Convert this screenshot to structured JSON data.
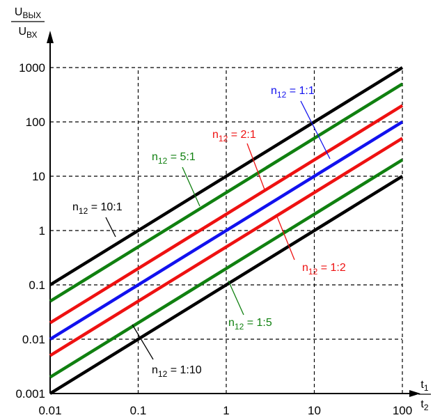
{
  "chart_data": {
    "type": "line",
    "title": "",
    "x_scale": "log",
    "y_scale": "log",
    "xlim": [
      0.01,
      100
    ],
    "ylim": [
      0.001,
      1000
    ],
    "grid": true,
    "x_ticks": [
      "0.01",
      "0.1",
      "1",
      "10",
      "100"
    ],
    "y_ticks": [
      "0.001",
      "0.01",
      "0.1",
      "1",
      "10",
      "100",
      "1000"
    ],
    "x_axis_label": {
      "num_main": "t",
      "num_sub": "1",
      "den_main": "t",
      "den_sub": "2"
    },
    "y_axis_label": {
      "num_main": "U",
      "num_sub": "ВЫХ",
      "den_main": "U",
      "den_sub": "ВХ"
    },
    "series": [
      {
        "name": "n12 = 10:1",
        "label_main": "n",
        "label_sub": "12",
        "label_ratio": " = 10:1",
        "color": "#000000",
        "x": [
          0.01,
          100
        ],
        "y": [
          0.1,
          1000
        ]
      },
      {
        "name": "n12 = 5:1",
        "label_main": "n",
        "label_sub": "12",
        "label_ratio": " = 5:1",
        "color": "#108010",
        "x": [
          0.01,
          100
        ],
        "y": [
          0.05,
          500
        ]
      },
      {
        "name": "n12 = 2:1",
        "label_main": "n",
        "label_sub": "12",
        "label_ratio": " = 2:1",
        "color": "#ee1111",
        "x": [
          0.01,
          100
        ],
        "y": [
          0.02,
          200
        ]
      },
      {
        "name": "n12 = 1:1",
        "label_main": "n",
        "label_sub": "12",
        "label_ratio": " = 1:1",
        "color": "#1111ee",
        "x": [
          0.01,
          100
        ],
        "y": [
          0.01,
          100
        ]
      },
      {
        "name": "n12 = 1:2",
        "label_main": "n",
        "label_sub": "12",
        "label_ratio": " = 1:2",
        "color": "#ee1111",
        "x": [
          0.01,
          100
        ],
        "y": [
          0.005,
          50
        ]
      },
      {
        "name": "n12 = 1:5",
        "label_main": "n",
        "label_sub": "12",
        "label_ratio": " = 1:5",
        "color": "#108010",
        "x": [
          0.01,
          100
        ],
        "y": [
          0.002,
          20
        ]
      },
      {
        "name": "n12 = 1:10",
        "label_main": "n",
        "label_sub": "12",
        "label_ratio": " = 1:10",
        "color": "#000000",
        "x": [
          0.01,
          100
        ],
        "y": [
          0.001,
          10
        ]
      }
    ]
  }
}
